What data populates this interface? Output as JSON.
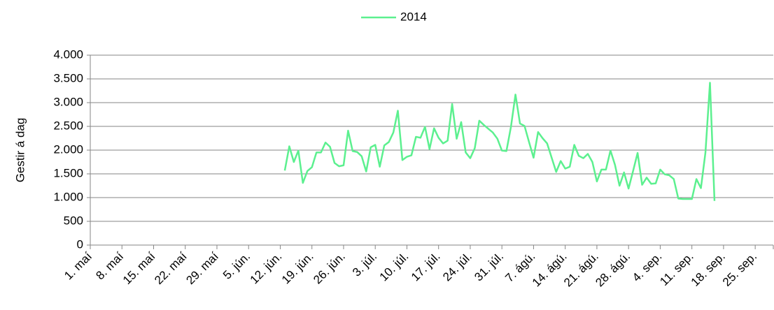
{
  "chart_data": {
    "type": "line",
    "ylabel": "Gestir á dag",
    "x": [
      43,
      44,
      45,
      46,
      47,
      48,
      49,
      50,
      51,
      52,
      53,
      54,
      55,
      56,
      57,
      58,
      59,
      60,
      61,
      62,
      63,
      64,
      65,
      66,
      67,
      68,
      69,
      70,
      71,
      72,
      73,
      74,
      75,
      76,
      77,
      78,
      79,
      80,
      81,
      82,
      83,
      84,
      85,
      86,
      87,
      88,
      89,
      90,
      91,
      92,
      93,
      94,
      95,
      96,
      97,
      98,
      99,
      100,
      101,
      102,
      103,
      104,
      105,
      106,
      107,
      108,
      109,
      110,
      111,
      112,
      113,
      114,
      115,
      116,
      117,
      118,
      119,
      120,
      121,
      122,
      123,
      124,
      125,
      126,
      127,
      128,
      129,
      130,
      131,
      132,
      133,
      134,
      135,
      136,
      137,
      138
    ],
    "series": [
      {
        "name": "2014",
        "color": "#5cf08f",
        "values": [
          1570,
          2080,
          1750,
          1990,
          1310,
          1560,
          1640,
          1950,
          1950,
          2160,
          2070,
          1730,
          1660,
          1680,
          2410,
          1980,
          1960,
          1870,
          1550,
          2060,
          2110,
          1650,
          2100,
          2170,
          2370,
          2830,
          1790,
          1860,
          1890,
          2280,
          2260,
          2490,
          2020,
          2460,
          2260,
          2140,
          2200,
          2970,
          2240,
          2590,
          1950,
          1830,
          2040,
          2620,
          2530,
          2450,
          2370,
          2240,
          1990,
          1980,
          2490,
          3170,
          2560,
          2510,
          2170,
          1840,
          2380,
          2250,
          2140,
          1840,
          1540,
          1770,
          1610,
          1650,
          2110,
          1880,
          1830,
          1920,
          1750,
          1340,
          1590,
          1590,
          1990,
          1690,
          1250,
          1530,
          1190,
          1560,
          1940,
          1270,
          1420,
          1290,
          1300,
          1590,
          1490,
          1470,
          1390,
          980,
          970,
          970,
          970,
          1390,
          1200,
          1950,
          3420,
          930
        ]
      }
    ],
    "xlim": [
      0,
      151
    ],
    "xticks": [
      {
        "value": 0,
        "label": "1. maí"
      },
      {
        "value": 7,
        "label": "8. maí"
      },
      {
        "value": 14,
        "label": "15. maí"
      },
      {
        "value": 21,
        "label": "22. maí"
      },
      {
        "value": 28,
        "label": "29. maí"
      },
      {
        "value": 35,
        "label": "5. jún."
      },
      {
        "value": 42,
        "label": "12. jún."
      },
      {
        "value": 49,
        "label": "19. jún."
      },
      {
        "value": 56,
        "label": "26. jún."
      },
      {
        "value": 63,
        "label": "3. júl."
      },
      {
        "value": 70,
        "label": "10. júl."
      },
      {
        "value": 77,
        "label": "17. júl."
      },
      {
        "value": 84,
        "label": "24. júl."
      },
      {
        "value": 91,
        "label": "31. júl."
      },
      {
        "value": 98,
        "label": "7. ágú."
      },
      {
        "value": 105,
        "label": "14. ágú."
      },
      {
        "value": 112,
        "label": "21. ágú."
      },
      {
        "value": 119,
        "label": "28. ágú."
      },
      {
        "value": 126,
        "label": "4. sep."
      },
      {
        "value": 133,
        "label": "11. sep."
      },
      {
        "value": 140,
        "label": "18. sep."
      },
      {
        "value": 147,
        "label": "25. sep."
      }
    ],
    "ylim": [
      0,
      4000
    ],
    "yticks": [
      0,
      500,
      {
        "value": 1000,
        "label": "1.000"
      },
      {
        "value": 1500,
        "label": "1.500"
      },
      {
        "value": 2000,
        "label": "2.000"
      },
      {
        "value": 2500,
        "label": "2.500"
      },
      {
        "value": 3000,
        "label": "3.000"
      },
      {
        "value": 3500,
        "label": "3.500"
      },
      {
        "value": 4000,
        "label": "4.000"
      }
    ],
    "grid": true,
    "legend": "top"
  }
}
